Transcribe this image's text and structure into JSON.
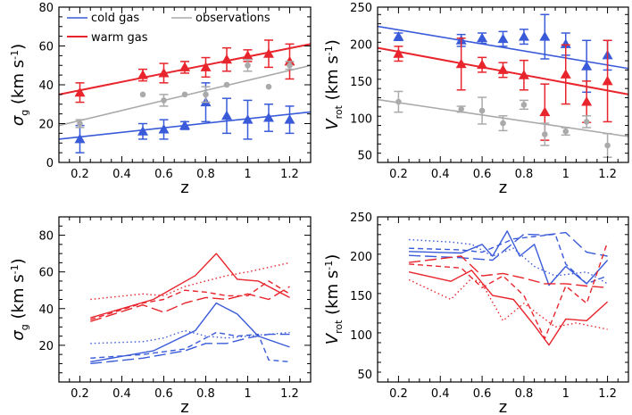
{
  "colors": {
    "cold": "#3a5bd9",
    "warm": "#e8242c",
    "obs": "#aaaaaa",
    "axis": "#000000"
  },
  "legend": [
    {
      "label": "cold gas",
      "color": "#3a5bd9"
    },
    {
      "label": "warm gas",
      "color": "#e8242c"
    },
    {
      "label": "observations",
      "color": "#aaaaaa"
    }
  ],
  "chart_data": [
    {
      "id": "top-left",
      "type": "scatter",
      "xlabel": "z",
      "ylabel_main": "σ",
      "ylabel_sub": "g",
      "ylabel_unit": "(km s",
      "ylabel_sup": "-1",
      "ylabel_close": ")",
      "xlim": [
        0.1,
        1.3
      ],
      "ylim": [
        0,
        80
      ],
      "xticks": [
        0.2,
        0.4,
        0.6,
        0.8,
        1,
        1.2
      ],
      "xtick_labels": [
        "0.2",
        "0.4",
        "0.6",
        "0.8",
        "1",
        "1.2"
      ],
      "yticks": [
        0,
        20,
        40,
        60,
        80
      ],
      "ytick_labels": [
        "0",
        "20",
        "40",
        "60",
        "80"
      ],
      "fits": [
        {
          "name": "cold gas",
          "color": "cold",
          "x": [
            0.1,
            1.3
          ],
          "y": [
            12,
            26
          ]
        },
        {
          "name": "warm gas",
          "color": "warm",
          "x": [
            0.1,
            1.3
          ],
          "y": [
            35,
            61
          ]
        },
        {
          "name": "observations",
          "color": "obs",
          "x": [
            0.1,
            1.3
          ],
          "y": [
            19,
            50
          ]
        }
      ],
      "series": [
        {
          "name": "cold gas",
          "color": "cold",
          "marker": "triangle",
          "x": [
            0.2,
            0.5,
            0.6,
            0.7,
            0.8,
            0.9,
            1.0,
            1.1,
            1.2
          ],
          "y": [
            12,
            16,
            17,
            19,
            31,
            24,
            22,
            23,
            22
          ],
          "err": [
            7,
            4,
            5,
            2,
            10,
            9,
            10,
            7,
            7
          ]
        },
        {
          "name": "warm gas",
          "color": "warm",
          "marker": "triangle",
          "x": [
            0.2,
            0.5,
            0.6,
            0.7,
            0.8,
            0.9,
            1.0,
            1.1,
            1.2
          ],
          "y": [
            36,
            45,
            46,
            49,
            49,
            53,
            55,
            56,
            52
          ],
          "err": [
            5,
            3,
            5,
            3,
            5,
            6,
            3,
            7,
            9
          ]
        },
        {
          "name": "observations",
          "color": "obs",
          "marker": "circle",
          "x": [
            0.2,
            0.5,
            0.6,
            0.7,
            0.8,
            0.9,
            1.0,
            1.1,
            1.2
          ],
          "y": [
            20,
            35,
            32,
            35,
            35,
            40,
            50,
            39,
            50
          ],
          "err": [
            2,
            0,
            3,
            0,
            4,
            0,
            3,
            0,
            2
          ]
        }
      ]
    },
    {
      "id": "top-right",
      "type": "scatter",
      "xlabel": "z",
      "ylabel_main": "V",
      "ylabel_sub": "rot",
      "ylabel_unit": "(km s",
      "ylabel_sup": "-1",
      "ylabel_close": ")",
      "xlim": [
        0.1,
        1.3
      ],
      "ylim": [
        40,
        250
      ],
      "xticks": [
        0.2,
        0.4,
        0.6,
        0.8,
        1,
        1.2
      ],
      "xtick_labels": [
        "0.2",
        "0.4",
        "0.6",
        "0.8",
        "1",
        "1.2"
      ],
      "yticks": [
        50,
        100,
        150,
        200,
        250
      ],
      "ytick_labels": [
        "50",
        "100",
        "150",
        "200",
        "250"
      ],
      "fits": [
        {
          "name": "cold gas",
          "color": "cold",
          "x": [
            0.1,
            1.3
          ],
          "y": [
            224,
            167
          ]
        },
        {
          "name": "warm gas",
          "color": "warm",
          "x": [
            0.1,
            1.3
          ],
          "y": [
            195,
            132
          ]
        },
        {
          "name": "observations",
          "color": "obs",
          "x": [
            0.1,
            1.3
          ],
          "y": [
            125,
            75
          ]
        }
      ],
      "series": [
        {
          "name": "cold gas",
          "color": "cold",
          "marker": "triangle",
          "x": [
            0.2,
            0.5,
            0.6,
            0.7,
            0.8,
            0.9,
            1.0,
            1.1,
            1.2
          ],
          "y": [
            210,
            205,
            208,
            207,
            210,
            210,
            200,
            170,
            185
          ],
          "err": [
            5,
            8,
            7,
            10,
            10,
            30,
            15,
            35,
            20
          ]
        },
        {
          "name": "warm gas",
          "color": "warm",
          "marker": "triangle",
          "x": [
            0.2,
            0.5,
            0.6,
            0.7,
            0.8,
            0.9,
            1.0,
            1.1,
            1.2
          ],
          "y": [
            187,
            173,
            172,
            165,
            158,
            108,
            159,
            122,
            150
          ],
          "err": [
            10,
            35,
            10,
            10,
            20,
            38,
            40,
            28,
            55
          ]
        },
        {
          "name": "observations",
          "color": "obs",
          "marker": "circle",
          "x": [
            0.2,
            0.5,
            0.6,
            0.7,
            0.8,
            0.9,
            1.0,
            1.1,
            1.2
          ],
          "y": [
            122,
            112,
            110,
            93,
            118,
            78,
            82,
            95,
            63
          ],
          "err": [
            14,
            4,
            18,
            10,
            6,
            15,
            5,
            8,
            16
          ]
        }
      ]
    },
    {
      "id": "bottom-left",
      "type": "line",
      "xlabel": "z",
      "ylabel_main": "σ",
      "ylabel_sub": "g",
      "ylabel_unit": "(km s",
      "ylabel_sup": "-1",
      "ylabel_close": ")",
      "xlim": [
        0.1,
        1.3
      ],
      "ylim": [
        0,
        90
      ],
      "xticks": [
        0.2,
        0.4,
        0.6,
        0.8,
        1,
        1.2
      ],
      "xtick_labels": [
        "0.2",
        "0.4",
        "0.6",
        "0.8",
        "1",
        "1.2"
      ],
      "yticks": [
        20,
        40,
        60,
        80
      ],
      "ytick_labels": [
        "20",
        "40",
        "60",
        "80"
      ],
      "lines": [
        {
          "name": "warm-solid",
          "color": "warm",
          "dash": "solid",
          "x": [
            0.25,
            0.55,
            0.75,
            0.85,
            0.95,
            1.05,
            1.2
          ],
          "y": [
            35,
            45,
            58,
            70,
            56,
            55,
            46
          ]
        },
        {
          "name": "warm-dotted",
          "color": "warm",
          "dash": "dotted",
          "x": [
            0.25,
            0.5,
            0.6,
            0.7,
            0.8,
            0.9,
            1.0,
            1.2
          ],
          "y": [
            45,
            48,
            47,
            52,
            55,
            58,
            60,
            65
          ]
        },
        {
          "name": "warm-dashed",
          "color": "warm",
          "dash": "dashed",
          "x": [
            0.25,
            0.5,
            0.6,
            0.7,
            0.8,
            0.9,
            1.0,
            1.1,
            1.2
          ],
          "y": [
            34,
            43,
            45,
            50,
            49,
            47,
            47,
            55,
            48
          ]
        },
        {
          "name": "warm-longdash",
          "color": "warm",
          "dash": "longdash",
          "x": [
            0.25,
            0.5,
            0.6,
            0.7,
            0.8,
            0.9,
            1.0,
            1.1,
            1.2
          ],
          "y": [
            33,
            42,
            38,
            43,
            46,
            45,
            48,
            45,
            52
          ]
        },
        {
          "name": "cold-solid",
          "color": "cold",
          "dash": "solid",
          "x": [
            0.25,
            0.55,
            0.75,
            0.85,
            0.95,
            1.05,
            1.2
          ],
          "y": [
            11,
            17,
            28,
            43,
            37,
            25,
            19
          ]
        },
        {
          "name": "cold-dotted",
          "color": "cold",
          "dash": "dotted",
          "x": [
            0.25,
            0.5,
            0.6,
            0.7,
            0.8,
            0.9,
            1.0,
            1.2
          ],
          "y": [
            21,
            22,
            24,
            28,
            25,
            24,
            25,
            27
          ]
        },
        {
          "name": "cold-dashed",
          "color": "cold",
          "dash": "dashed",
          "x": [
            0.25,
            0.5,
            0.7,
            0.85,
            0.95,
            1.05,
            1.1,
            1.2
          ],
          "y": [
            13,
            15,
            18,
            27,
            25,
            26,
            12,
            11
          ]
        },
        {
          "name": "cold-longdash",
          "color": "cold",
          "dash": "longdash",
          "x": [
            0.25,
            0.5,
            0.7,
            0.8,
            0.9,
            1.0,
            1.1,
            1.2
          ],
          "y": [
            10,
            13,
            17,
            21,
            21,
            24,
            26,
            26
          ]
        }
      ]
    },
    {
      "id": "bottom-right",
      "type": "line",
      "xlabel": "z",
      "ylabel_main": "V",
      "ylabel_sub": "rot",
      "ylabel_unit": "(km s",
      "ylabel_sup": "-1",
      "ylabel_close": ")",
      "xlim": [
        0.1,
        1.3
      ],
      "ylim": [
        40,
        250
      ],
      "xticks": [
        0.2,
        0.4,
        0.6,
        0.8,
        1,
        1.2
      ],
      "xtick_labels": [
        "0.2",
        "0.4",
        "0.6",
        "0.8",
        "1",
        "1.2"
      ],
      "yticks": [
        50,
        100,
        150,
        200,
        250
      ],
      "ytick_labels": [
        "50",
        "100",
        "150",
        "200",
        "250"
      ],
      "lines": [
        {
          "name": "cold-solid",
          "color": "cold",
          "dash": "solid",
          "x": [
            0.25,
            0.5,
            0.6,
            0.65,
            0.72,
            0.78,
            0.85,
            0.92,
            1.0,
            1.1,
            1.2
          ],
          "y": [
            206,
            204,
            215,
            200,
            232,
            200,
            215,
            163,
            187,
            165,
            195
          ]
        },
        {
          "name": "cold-dotted",
          "color": "cold",
          "dash": "dotted",
          "x": [
            0.25,
            0.45,
            0.55,
            0.65,
            0.75,
            0.85,
            0.95,
            1.1,
            1.2
          ],
          "y": [
            221,
            218,
            215,
            200,
            210,
            187,
            175,
            180,
            165
          ]
        },
        {
          "name": "cold-dashed",
          "color": "cold",
          "dash": "dashed",
          "x": [
            0.25,
            0.5,
            0.6,
            0.75,
            0.85,
            0.95,
            1.0,
            1.1,
            1.2
          ],
          "y": [
            210,
            208,
            205,
            222,
            225,
            228,
            190,
            165,
            175
          ]
        },
        {
          "name": "cold-longdash",
          "color": "cold",
          "dash": "longdash",
          "x": [
            0.25,
            0.5,
            0.65,
            0.8,
            0.9,
            1.0,
            1.1,
            1.2
          ],
          "y": [
            201,
            198,
            195,
            228,
            227,
            230,
            205,
            200
          ]
        },
        {
          "name": "warm-solid",
          "color": "warm",
          "dash": "solid",
          "x": [
            0.25,
            0.45,
            0.55,
            0.65,
            0.75,
            0.85,
            0.92,
            1.0,
            1.1,
            1.2
          ],
          "y": [
            180,
            168,
            182,
            150,
            145,
            112,
            87,
            120,
            118,
            142
          ]
        },
        {
          "name": "warm-dotted",
          "color": "warm",
          "dash": "dotted",
          "x": [
            0.25,
            0.45,
            0.55,
            0.6,
            0.7,
            0.8,
            0.95,
            1.05,
            1.2
          ],
          "y": [
            170,
            145,
            172,
            165,
            118,
            140,
            110,
            115,
            107
          ]
        },
        {
          "name": "warm-dashed",
          "color": "warm",
          "dash": "dashed",
          "x": [
            0.25,
            0.5,
            0.6,
            0.7,
            0.8,
            0.9,
            1.0,
            1.1,
            1.2
          ],
          "y": [
            190,
            185,
            160,
            175,
            150,
            95,
            162,
            140,
            218
          ]
        },
        {
          "name": "warm-longdash",
          "color": "warm",
          "dash": "longdash",
          "x": [
            0.25,
            0.5,
            0.6,
            0.7,
            0.8,
            0.9,
            1.0,
            1.1,
            1.2
          ],
          "y": [
            192,
            200,
            175,
            178,
            172,
            165,
            165,
            162,
            160
          ]
        }
      ]
    }
  ]
}
